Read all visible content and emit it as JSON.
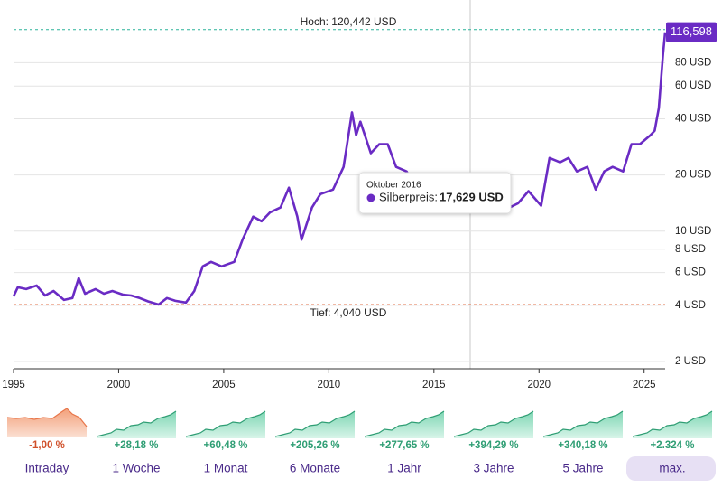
{
  "chart_data": {
    "type": "line",
    "log_y": true,
    "grid": true,
    "x": [
      1995.0,
      1995.2,
      1995.6,
      1996.1,
      1996.5,
      1996.9,
      1997.4,
      1997.8,
      1998.1,
      1998.4,
      1998.9,
      1999.3,
      1999.7,
      2000.2,
      2000.6,
      2001.0,
      2001.4,
      2001.9,
      2002.3,
      2002.7,
      2003.2,
      2003.6,
      2004.0,
      2004.4,
      2004.9,
      2005.5,
      2005.9,
      2006.4,
      2006.8,
      2007.2,
      2007.7,
      2008.1,
      2008.5,
      2008.7,
      2009.2,
      2009.6,
      2010.2,
      2010.7,
      2011.1,
      2011.3,
      2011.5,
      2012.0,
      2012.4,
      2012.8,
      2013.2,
      2013.7,
      2014.1,
      2015.0,
      2015.8,
      2016.75,
      2017.5,
      2018.2,
      2018.6,
      2019.0,
      2019.5,
      2020.1,
      2020.5,
      2021.0,
      2021.4,
      2021.8,
      2022.3,
      2022.7,
      2023.1,
      2023.5,
      2024.0,
      2024.4,
      2024.8,
      2025.3,
      2025.5,
      2025.7,
      2025.9,
      2026.0
    ],
    "series": [
      {
        "name": "Silberpreis",
        "color": "#6a2bc4",
        "values": [
          4.47,
          5.0,
          4.89,
          5.11,
          4.52,
          4.78,
          4.28,
          4.38,
          5.6,
          4.62,
          4.89,
          4.62,
          4.78,
          4.57,
          4.52,
          4.38,
          4.2,
          4.04,
          4.38,
          4.23,
          4.14,
          4.78,
          6.47,
          6.84,
          6.47,
          6.84,
          9.04,
          11.97,
          11.3,
          12.6,
          13.4,
          17.1,
          12.0,
          9.0,
          13.4,
          15.8,
          16.7,
          22.1,
          43.3,
          32.7,
          38.6,
          26.2,
          29.3,
          29.3,
          22.1,
          20.9,
          17.7,
          15.8,
          17.7,
          17.629,
          15.8,
          14.1,
          13.4,
          14.1,
          16.4,
          13.7,
          24.7,
          23.4,
          24.7,
          20.9,
          22.1,
          16.7,
          20.9,
          22.1,
          20.9,
          29.3,
          29.3,
          32.7,
          34.6,
          45.7,
          89.4,
          116.598
        ]
      }
    ],
    "xlim": [
      1995,
      2026
    ],
    "xticks": [
      1995,
      2000,
      2005,
      2010,
      2015,
      2020,
      2025
    ],
    "ylim": [
      1.83,
      173.6
    ],
    "yticks": [
      {
        "value": 2,
        "label": "2 USD"
      },
      {
        "value": 4,
        "label": "4 USD"
      },
      {
        "value": 6,
        "label": "6 USD"
      },
      {
        "value": 8,
        "label": "8 USD"
      },
      {
        "value": 10,
        "label": "10 USD"
      },
      {
        "value": 20,
        "label": "20 USD"
      },
      {
        "value": 40,
        "label": "40 USD"
      },
      {
        "value": 60,
        "label": "60 USD"
      },
      {
        "value": 80,
        "label": "80 USD"
      }
    ],
    "high": {
      "value": 120.442,
      "label": "Hoch: 120,442 USD"
    },
    "low": {
      "value": 4.04,
      "label": "Tief: 4,040 USD"
    },
    "last_label": "116,598",
    "tooltip": {
      "date": "Oktober 2016",
      "name": "Silberpreis:",
      "value": "17,629 USD"
    }
  },
  "periods": [
    {
      "change": "-1,00 %",
      "label": "Intraday"
    },
    {
      "change": "+28,18 %",
      "label": "1 Woche"
    },
    {
      "change": "+60,48 %",
      "label": "1 Monat"
    },
    {
      "change": "+205,26 %",
      "label": "6 Monate"
    },
    {
      "change": "+277,65 %",
      "label": "1 Jahr"
    },
    {
      "change": "+394,29 %",
      "label": "3 Jahre"
    },
    {
      "change": "+340,18 %",
      "label": "5 Jahre"
    },
    {
      "change": "+2.324 %",
      "label": "max."
    }
  ]
}
